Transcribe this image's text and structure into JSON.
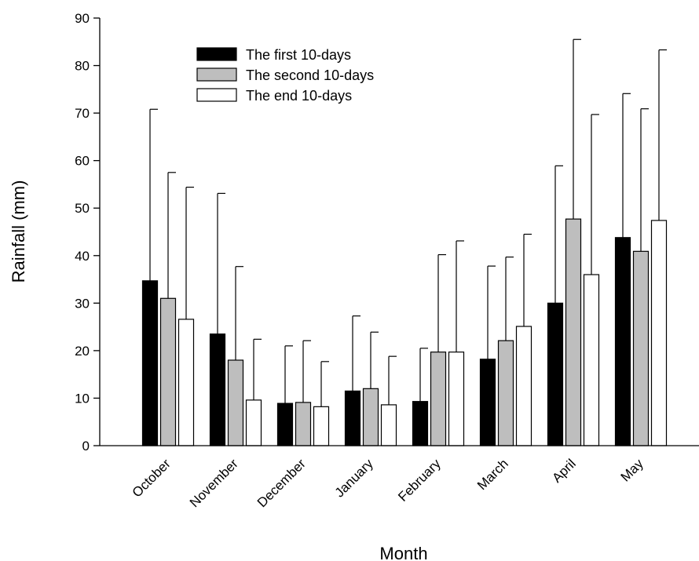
{
  "chart_data": {
    "type": "bar",
    "title": "",
    "xlabel": "Month",
    "ylabel": "Rainfall (mm)",
    "ylim": [
      0,
      90
    ],
    "yticks": [
      0,
      10,
      20,
      30,
      40,
      50,
      60,
      70,
      80,
      90
    ],
    "categories": [
      "October",
      "November",
      "December",
      "January",
      "February",
      "March",
      "April",
      "May"
    ],
    "error_bars": "upper",
    "legend": {
      "placement": "top-left"
    },
    "grid": false,
    "series": [
      {
        "name": "The first 10-days",
        "color": "#000000",
        "values": [
          34.7,
          23.5,
          8.9,
          11.5,
          9.3,
          18.2,
          30.0,
          43.8
        ],
        "error_top": [
          70.8,
          53.1,
          21.0,
          27.3,
          20.5,
          37.8,
          58.9,
          74.1
        ]
      },
      {
        "name": "The second 10-days",
        "color": "#bebebe",
        "values": [
          31.0,
          18.0,
          9.1,
          12.0,
          19.7,
          22.1,
          47.7,
          40.9
        ],
        "error_top": [
          57.5,
          37.7,
          22.1,
          23.9,
          40.2,
          39.7,
          85.5,
          70.9
        ]
      },
      {
        "name": "The end 10-days",
        "color": "#ffffff",
        "values": [
          26.6,
          9.6,
          8.2,
          8.6,
          19.7,
          25.1,
          36.0,
          47.4
        ],
        "error_top": [
          54.4,
          22.4,
          17.7,
          18.8,
          43.1,
          44.5,
          69.7,
          83.3
        ]
      }
    ]
  }
}
